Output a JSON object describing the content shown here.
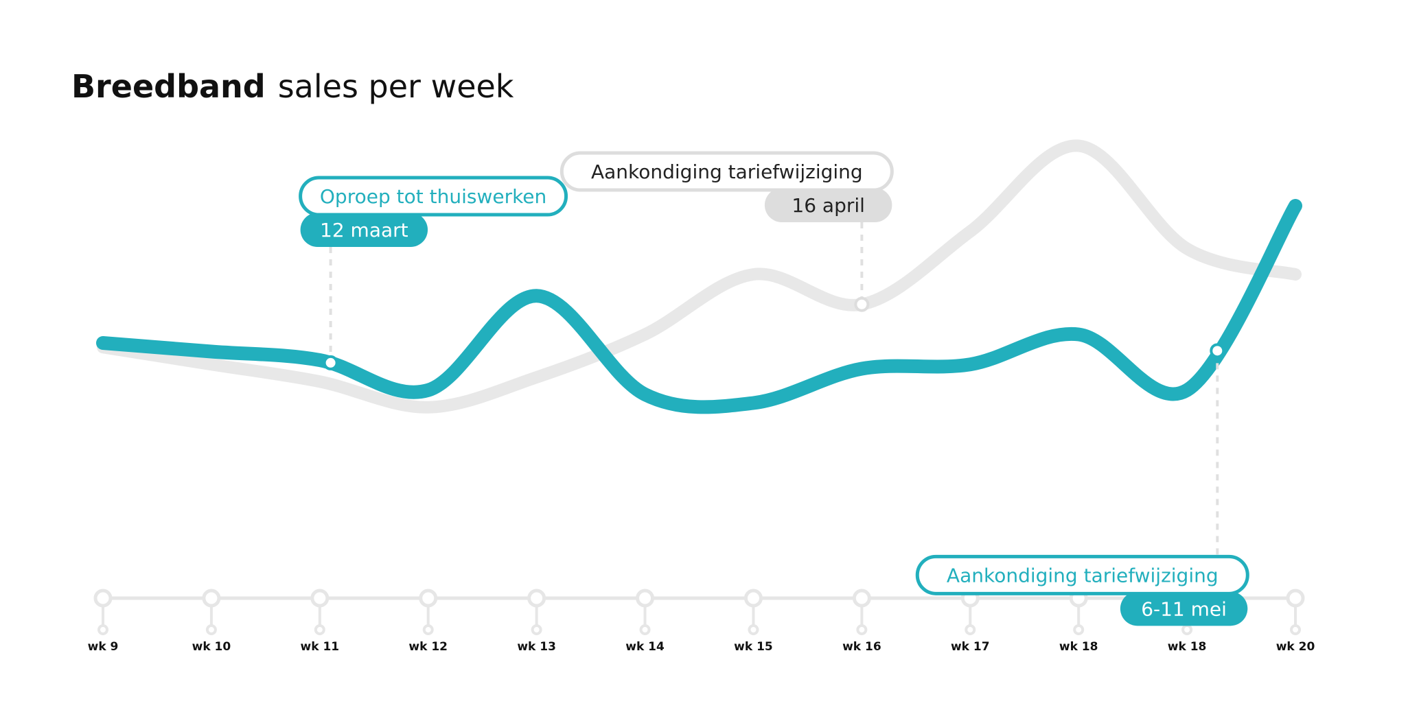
{
  "chart_data": {
    "type": "line",
    "title": {
      "bold": "Breedband",
      "rest": "sales per week"
    },
    "xlabel": "",
    "ylabel": "",
    "x": [
      "wk 9",
      "wk 10",
      "wk 11",
      "wk 12",
      "wk 13",
      "wk 14",
      "wk 15",
      "wk 16",
      "wk 17",
      "wk 18",
      "wk 18",
      "wk 20"
    ],
    "ylim": [
      0,
      100
    ],
    "grid": false,
    "legend": "none",
    "series": [
      {
        "color": "#e8e8e8",
        "values": [
          55,
          51,
          47,
          41,
          48,
          58,
          72,
          65,
          82,
          102,
          78,
          72
        ]
      },
      {
        "color": "#22afbd",
        "values": [
          56,
          54,
          52,
          45,
          67,
          44,
          42,
          50,
          51,
          58,
          45,
          88
        ]
      }
    ],
    "annotations": [
      {
        "label": "Oproep tot thuiswerken",
        "date": "12 maart",
        "x": 2.1,
        "series": 1,
        "color": "#22afbd",
        "placement": "above"
      },
      {
        "label": "Aankondiging tariefwijziging",
        "date": "16 april",
        "x": 7.0,
        "series": 0,
        "color": "#dddddd",
        "placement": "above"
      },
      {
        "label": "Aankondiging tariefwijziging",
        "date": "6-11 mei",
        "x": 10.28,
        "series": 1,
        "color": "#22afbd",
        "placement": "below"
      }
    ]
  }
}
